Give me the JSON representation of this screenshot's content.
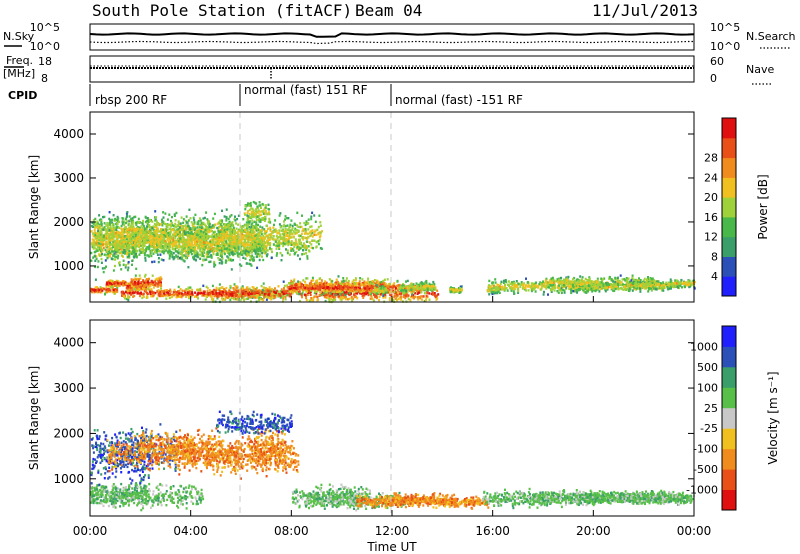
{
  "header": {
    "station": "South Pole Station (fitACF)",
    "beam": "Beam 04",
    "date": "11/Jul/2013"
  },
  "left_labels": {
    "nsky": "N.Sky",
    "freq": "Freq.",
    "freq_unit": "[MHz]",
    "cpid": "CPID"
  },
  "right_labels": {
    "nsearch": "N.Search",
    "nave": "Nave"
  },
  "colors": {
    "power": [
      "#2020ff",
      "#2b50b8",
      "#3a9e6a",
      "#48b84a",
      "#9fd23a",
      "#f0c020",
      "#f08c1e",
      "#e85018",
      "#e01010"
    ],
    "velocity": [
      "#e01010",
      "#e85018",
      "#f08c1e",
      "#f0c020",
      "#c8c8c8",
      "#58c048",
      "#3a9e6a",
      "#2b50b8",
      "#2020ff"
    ]
  },
  "chart_data": [
    {
      "type": "line",
      "name": "noise-panel",
      "left_axis": {
        "label": "N.Sky",
        "ticks": [
          "10^5",
          "10^0"
        ]
      },
      "right_axis": {
        "label": "N.Search",
        "ticks": [
          "10^5",
          "10^0"
        ]
      }
    },
    {
      "type": "line",
      "name": "freq-nave-panel",
      "left_axis": {
        "label": "Freq. [MHz]",
        "ticks": [
          "18",
          "8"
        ],
        "range": [
          8,
          18
        ]
      },
      "right_axis": {
        "label": "Nave",
        "ticks": [
          "60",
          "0"
        ],
        "range": [
          0,
          60
        ]
      }
    },
    {
      "type": "table",
      "name": "cpid-panel",
      "segments": [
        {
          "label": "rbsp 200 RF",
          "start_h": 0,
          "end_h": 6
        },
        {
          "label": "normal (fast) 151 RF",
          "start_h": 6,
          "end_h": 12
        },
        {
          "label": "normal (fast) -151 RF",
          "start_h": 12,
          "end_h": 24
        }
      ]
    },
    {
      "type": "heatmap",
      "name": "power-panel",
      "ylabel": "Slant Range [km]",
      "yticks": [
        1000,
        2000,
        3000,
        4000
      ],
      "ylim": [
        180,
        4500
      ],
      "xlim": [
        0,
        24
      ],
      "colorbar": {
        "label": "Power [dB]",
        "ticks": [
          "4",
          "8",
          "12",
          "16",
          "20",
          "24",
          "28"
        ],
        "range": [
          0,
          30
        ]
      },
      "blobs": [
        [
          1.0,
          600,
          60,
          0.8
        ],
        [
          1.8,
          530,
          80,
          0.8
        ],
        [
          0.3,
          450,
          60,
          1.5
        ],
        [
          2.2,
          620,
          120,
          1.2
        ],
        [
          0.1,
          1400,
          380,
          3.5
        ],
        [
          0.8,
          1650,
          320,
          1.8
        ],
        [
          1.5,
          1750,
          280,
          2.8
        ],
        [
          2.3,
          1500,
          240,
          4.5
        ],
        [
          2.9,
          1650,
          320,
          3.8
        ],
        [
          3.5,
          1800,
          260,
          4.5
        ],
        [
          4.4,
          1550,
          240,
          5.5
        ],
        [
          5.2,
          1400,
          280,
          3.5
        ],
        [
          5.9,
          1650,
          300,
          1.8
        ],
        [
          6.3,
          1550,
          260,
          5.0
        ],
        [
          6.6,
          2200,
          180,
          1.0
        ],
        [
          7.2,
          1700,
          300,
          4.0
        ],
        [
          4.2,
          380,
          90,
          6.0
        ],
        [
          6.7,
          350,
          60,
          2.0
        ],
        [
          9.3,
          380,
          140,
          9.0
        ],
        [
          9.8,
          550,
          120,
          4.0
        ],
        [
          10.6,
          500,
          90,
          5.5
        ],
        [
          11.5,
          450,
          60,
          0.5
        ],
        [
          12.5,
          500,
          50,
          0.5
        ],
        [
          13.2,
          520,
          70,
          1.0
        ],
        [
          14.5,
          450,
          50,
          0.5
        ],
        [
          16.0,
          450,
          50,
          0.5
        ],
        [
          17.8,
          530,
          100,
          4.0
        ],
        [
          19.5,
          520,
          60,
          1.0
        ],
        [
          20.3,
          620,
          90,
          4.5
        ],
        [
          21.3,
          520,
          70,
          3.0
        ],
        [
          22.4,
          560,
          60,
          2.0
        ],
        [
          23.5,
          600,
          60,
          1.0
        ]
      ]
    },
    {
      "type": "heatmap",
      "name": "velocity-panel",
      "ylabel": "Slant Range [km]",
      "yticks": [
        1000,
        2000,
        3000,
        4000
      ],
      "ylim": [
        180,
        4500
      ],
      "xlim": [
        0,
        24
      ],
      "colorbar": {
        "label": "Velocity [m s⁻¹]",
        "ticks": [
          "1000",
          "500",
          "100",
          "25",
          "-25",
          "-100",
          "-500",
          "-1000"
        ],
        "range": [
          -1000,
          1000
        ]
      },
      "blobs": [
        [
          0.8,
          650,
          140,
          3.0
        ],
        [
          2.0,
          620,
          160,
          5.0
        ],
        [
          0.2,
          1400,
          300,
          4.5
        ],
        [
          1.4,
          1650,
          300,
          4.0
        ],
        [
          2.4,
          1550,
          240,
          3.5
        ],
        [
          3.5,
          1700,
          240,
          3.0
        ],
        [
          4.4,
          1550,
          220,
          2.0
        ],
        [
          5.3,
          1500,
          260,
          1.5
        ],
        [
          6.2,
          1500,
          240,
          1.5
        ],
        [
          7.0,
          1700,
          260,
          1.5
        ],
        [
          7.5,
          1450,
          220,
          1.5
        ],
        [
          6.5,
          2200,
          160,
          3.0
        ],
        [
          9.5,
          600,
          160,
          3.0
        ],
        [
          10.5,
          520,
          120,
          4.0
        ],
        [
          11.8,
          500,
          80,
          2.5
        ],
        [
          12.8,
          550,
          80,
          2.0
        ],
        [
          13.8,
          520,
          80,
          1.5
        ],
        [
          14.8,
          480,
          70,
          2.0
        ],
        [
          17.8,
          560,
          110,
          4.5
        ],
        [
          20.3,
          600,
          80,
          5.5
        ],
        [
          21.5,
          560,
          80,
          4.0
        ],
        [
          23.0,
          580,
          80,
          4.0
        ]
      ]
    }
  ],
  "xaxis": {
    "ticks": [
      "00:00",
      "04:00",
      "08:00",
      "12:00",
      "16:00",
      "20:00",
      "00:00"
    ],
    "label": "Time UT"
  }
}
